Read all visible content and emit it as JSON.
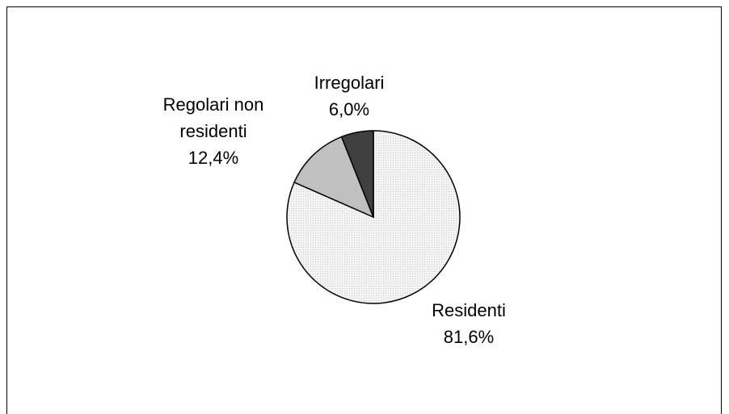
{
  "chart_data": {
    "type": "pie",
    "categories": [
      "Residenti",
      "Regolari non residenti",
      "Irregolari"
    ],
    "values": [
      81.6,
      12.4,
      6.0
    ],
    "value_labels": [
      "81,6%",
      "12,4%",
      "6,0%"
    ],
    "colors": [
      "#f2f2f2",
      "#c0c0c0",
      "#404040"
    ]
  }
}
